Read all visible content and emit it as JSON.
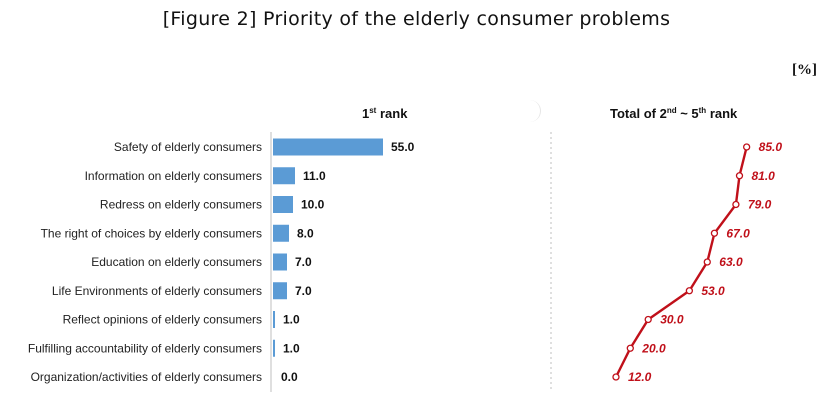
{
  "figure_title": "[Figure 2] Priority of the elderly consumer problems",
  "unit_label": "[%]",
  "panel_rank1": {
    "prefix": "1",
    "sup": "st",
    "suffix": " rank"
  },
  "panel_rank2_5": {
    "prefix": "Total of 2",
    "sup1": "nd",
    "mid": " ~ 5",
    "sup2": "th",
    "suffix": " rank"
  },
  "chart_data": [
    {
      "type": "bar",
      "orientation": "horizontal",
      "categories": [
        "Safety of elderly consumers",
        "Information on elderly consumers",
        "Redress on elderly consumers",
        "The right of choices by elderly consumers",
        "Education on elderly consumers",
        "Life Environments of elderly consumers",
        "Reflect opinions of elderly consumers",
        "Fulfilling  accountability  of elderly consumers",
        "Organization/activities  of elderly consumers"
      ],
      "values": [
        55.0,
        11.0,
        10.0,
        8.0,
        7.0,
        7.0,
        1.0,
        1.0,
        0.0
      ],
      "value_labels": [
        "55.0",
        "11.0",
        "10.0",
        "8.0",
        "7.0",
        "7.0",
        "1.0",
        "1.0",
        "0.0"
      ],
      "xlim": [
        0,
        100
      ],
      "bar_color": "#5b9bd5",
      "grid": false
    },
    {
      "type": "line",
      "values": [
        85.0,
        81.0,
        79.0,
        67.0,
        63.0,
        53.0,
        30.0,
        20.0,
        12.0
      ],
      "value_labels": [
        "85.0",
        "81.0",
        "79.0",
        "67.0",
        "63.0",
        "53.0",
        "30.0",
        "20.0",
        "12.0"
      ],
      "xlim": [
        0,
        100
      ],
      "line_color": "#c0101a",
      "marker": "open-circle",
      "grid": false
    }
  ]
}
